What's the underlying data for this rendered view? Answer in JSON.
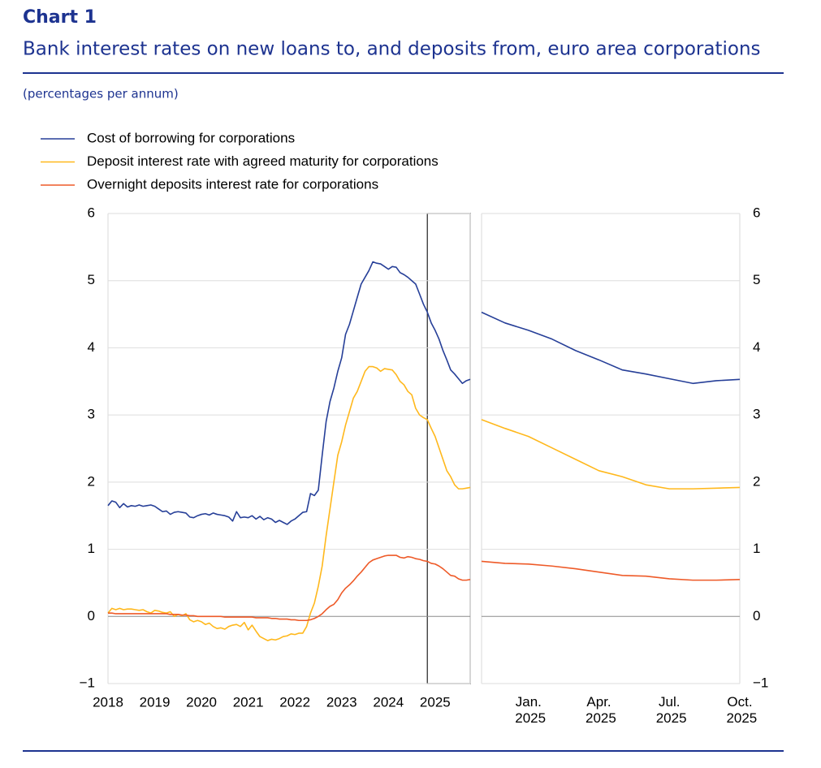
{
  "header": {
    "label": "Chart 1",
    "title": "Bank interest rates on new loans to, and deposits from, euro area corporations",
    "subtitle": "(percentages per annum)"
  },
  "chart_data": [
    {
      "type": "line",
      "x": [
        2018,
        2018.083,
        2018.167,
        2018.25,
        2018.333,
        2018.417,
        2018.5,
        2018.583,
        2018.667,
        2018.75,
        2018.833,
        2018.917,
        2019,
        2019.083,
        2019.167,
        2019.25,
        2019.333,
        2019.417,
        2019.5,
        2019.583,
        2019.667,
        2019.75,
        2019.833,
        2019.917,
        2020,
        2020.083,
        2020.167,
        2020.25,
        2020.333,
        2020.417,
        2020.5,
        2020.583,
        2020.667,
        2020.75,
        2020.833,
        2020.917,
        2021,
        2021.083,
        2021.167,
        2021.25,
        2021.333,
        2021.417,
        2021.5,
        2021.583,
        2021.667,
        2021.75,
        2021.833,
        2021.917,
        2022,
        2022.083,
        2022.167,
        2022.25,
        2022.333,
        2022.417,
        2022.5,
        2022.583,
        2022.667,
        2022.75,
        2022.833,
        2022.917,
        2023,
        2023.083,
        2023.167,
        2023.25,
        2023.333,
        2023.417,
        2023.5,
        2023.583,
        2023.667,
        2023.75,
        2023.833,
        2023.917,
        2024,
        2024.083,
        2024.167,
        2024.25,
        2024.333,
        2024.417,
        2024.5,
        2024.583,
        2024.667,
        2024.75,
        2024.833,
        2024.917,
        2025,
        2025.083,
        2025.167,
        2025.25,
        2025.333,
        2025.417,
        2025.5,
        2025.583,
        2025.667,
        2025.75
      ],
      "xlim": [
        2018,
        2025.75
      ],
      "xticks": [
        2018,
        2019,
        2020,
        2021,
        2022,
        2023,
        2024,
        2025
      ],
      "ylim": [
        -1,
        6
      ],
      "yticks": [
        {
          "value": -1,
          "label": "−1"
        },
        0,
        1,
        2,
        3,
        4,
        5,
        6
      ],
      "grid": true,
      "highlight": [
        2024.833,
        2025.75
      ],
      "series": [
        {
          "name": "Cost of borrowing for corporations",
          "color": "#263f98",
          "values": [
            1.65,
            1.72,
            1.7,
            1.62,
            1.68,
            1.63,
            1.65,
            1.64,
            1.66,
            1.64,
            1.65,
            1.66,
            1.64,
            1.6,
            1.56,
            1.57,
            1.52,
            1.55,
            1.56,
            1.55,
            1.54,
            1.48,
            1.47,
            1.5,
            1.52,
            1.53,
            1.51,
            1.54,
            1.52,
            1.51,
            1.5,
            1.48,
            1.42,
            1.56,
            1.47,
            1.48,
            1.47,
            1.5,
            1.45,
            1.49,
            1.44,
            1.47,
            1.45,
            1.4,
            1.43,
            1.4,
            1.37,
            1.42,
            1.45,
            1.5,
            1.55,
            1.56,
            1.83,
            1.8,
            1.88,
            2.4,
            2.9,
            3.2,
            3.4,
            3.65,
            3.85,
            4.2,
            4.35,
            4.55,
            4.75,
            4.95,
            5.05,
            5.15,
            5.28,
            5.26,
            5.25,
            5.21,
            5.17,
            5.21,
            5.2,
            5.12,
            5.09,
            5.05,
            5.0,
            4.95,
            4.8,
            4.65,
            4.53,
            4.37,
            4.26,
            4.13,
            3.96,
            3.82,
            3.67,
            3.61,
            3.54,
            3.47,
            3.51,
            3.53
          ]
        },
        {
          "name": "Deposit interest rate with agreed maturity for corporations",
          "color": "#ffb81c",
          "values": [
            0.05,
            0.12,
            0.1,
            0.12,
            0.1,
            0.11,
            0.11,
            0.1,
            0.09,
            0.1,
            0.07,
            0.05,
            0.09,
            0.08,
            0.06,
            0.05,
            0.07,
            0.0,
            0.03,
            0.01,
            0.04,
            -0.05,
            -0.08,
            -0.06,
            -0.08,
            -0.12,
            -0.1,
            -0.15,
            -0.18,
            -0.17,
            -0.19,
            -0.15,
            -0.13,
            -0.12,
            -0.15,
            -0.09,
            -0.2,
            -0.13,
            -0.22,
            -0.3,
            -0.33,
            -0.36,
            -0.34,
            -0.35,
            -0.33,
            -0.3,
            -0.29,
            -0.26,
            -0.27,
            -0.25,
            -0.25,
            -0.15,
            0.05,
            0.2,
            0.45,
            0.75,
            1.2,
            1.6,
            2.0,
            2.4,
            2.6,
            2.85,
            3.05,
            3.25,
            3.35,
            3.5,
            3.65,
            3.72,
            3.72,
            3.7,
            3.65,
            3.69,
            3.68,
            3.67,
            3.6,
            3.5,
            3.45,
            3.35,
            3.3,
            3.1,
            3.0,
            2.96,
            2.93,
            2.8,
            2.68,
            2.51,
            2.34,
            2.17,
            2.08,
            1.96,
            1.9,
            1.9,
            1.91,
            1.92
          ]
        },
        {
          "name": "Overnight deposits interest rate for corporations",
          "color": "#ee5a28",
          "values": [
            0.05,
            0.05,
            0.04,
            0.04,
            0.04,
            0.04,
            0.04,
            0.04,
            0.04,
            0.04,
            0.04,
            0.04,
            0.04,
            0.04,
            0.04,
            0.04,
            0.03,
            0.03,
            0.03,
            0.02,
            0.02,
            0.01,
            0.01,
            0.0,
            0.0,
            0.0,
            0.0,
            0.0,
            0.0,
            0.0,
            -0.01,
            -0.01,
            -0.01,
            -0.01,
            -0.01,
            -0.01,
            -0.01,
            -0.01,
            -0.02,
            -0.02,
            -0.02,
            -0.02,
            -0.03,
            -0.03,
            -0.04,
            -0.04,
            -0.04,
            -0.05,
            -0.05,
            -0.06,
            -0.06,
            -0.06,
            -0.05,
            -0.03,
            0.0,
            0.04,
            0.1,
            0.15,
            0.18,
            0.25,
            0.35,
            0.42,
            0.47,
            0.53,
            0.6,
            0.66,
            0.73,
            0.8,
            0.84,
            0.86,
            0.88,
            0.9,
            0.91,
            0.91,
            0.91,
            0.88,
            0.87,
            0.89,
            0.88,
            0.86,
            0.85,
            0.83,
            0.82,
            0.79,
            0.78,
            0.75,
            0.71,
            0.66,
            0.61,
            0.6,
            0.56,
            0.54,
            0.54,
            0.55
          ]
        }
      ]
    },
    {
      "type": "line",
      "categories": [
        null,
        null,
        "Jan. 2025",
        null,
        null,
        "Apr. 2025",
        null,
        null,
        "Jul. 2025",
        null,
        null,
        "Oct. 2025"
      ],
      "ylim": [
        -1,
        6
      ],
      "yticks": [
        {
          "value": -1,
          "label": "−1"
        },
        0,
        1,
        2,
        3,
        4,
        5,
        6
      ],
      "grid": true,
      "series": [
        {
          "color": "#263f98",
          "values": [
            4.53,
            4.37,
            4.26,
            4.13,
            3.96,
            3.82,
            3.67,
            3.61,
            3.54,
            3.47,
            3.51,
            3.53
          ]
        },
        {
          "color": "#ffb81c",
          "values": [
            2.93,
            2.8,
            2.68,
            2.51,
            2.34,
            2.17,
            2.08,
            1.96,
            1.9,
            1.9,
            1.91,
            1.92
          ]
        },
        {
          "color": "#ee5a28",
          "values": [
            0.82,
            0.79,
            0.78,
            0.75,
            0.71,
            0.66,
            0.61,
            0.6,
            0.56,
            0.54,
            0.54,
            0.55
          ]
        }
      ]
    }
  ]
}
